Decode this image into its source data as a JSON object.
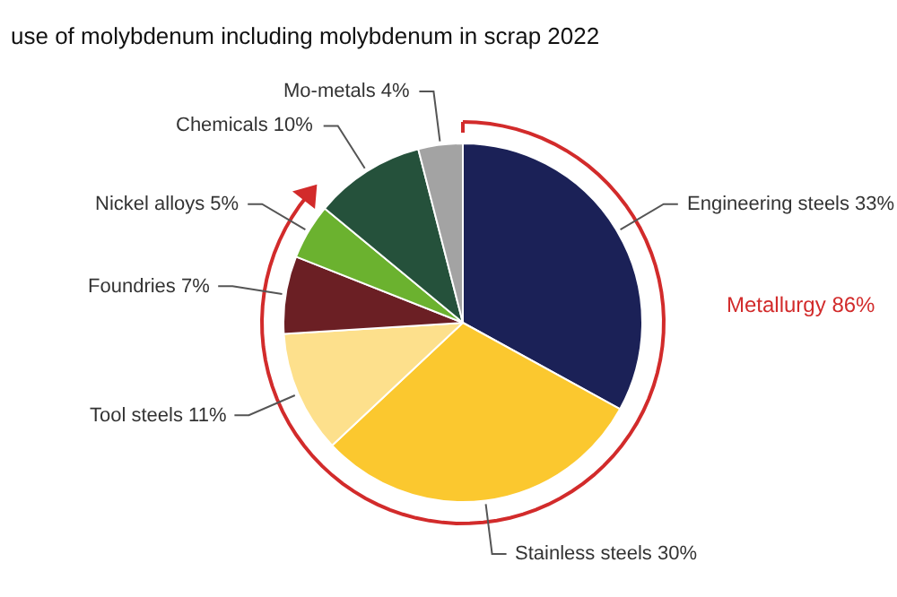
{
  "chart_data": {
    "type": "pie",
    "title": "use of molybdenum including molybdenum in scrap 2022",
    "categories": [
      "Engineering steels",
      "Stainless steels",
      "Tool steels",
      "Foundries",
      "Nickel alloys",
      "Chemicals",
      "Mo-metals"
    ],
    "values": [
      33,
      30,
      11,
      7,
      5,
      10,
      4
    ],
    "value_labels": [
      "33%",
      "30%",
      "11%",
      "7%",
      "5%",
      "10%",
      "4%"
    ],
    "colors": [
      "#1b2157",
      "#fbc82f",
      "#fde08c",
      "#6b1f24",
      "#6bb22f",
      "#25513b",
      "#a3a3a3"
    ],
    "annotations": [
      "Metallurgy 86%"
    ],
    "legend": false
  }
}
